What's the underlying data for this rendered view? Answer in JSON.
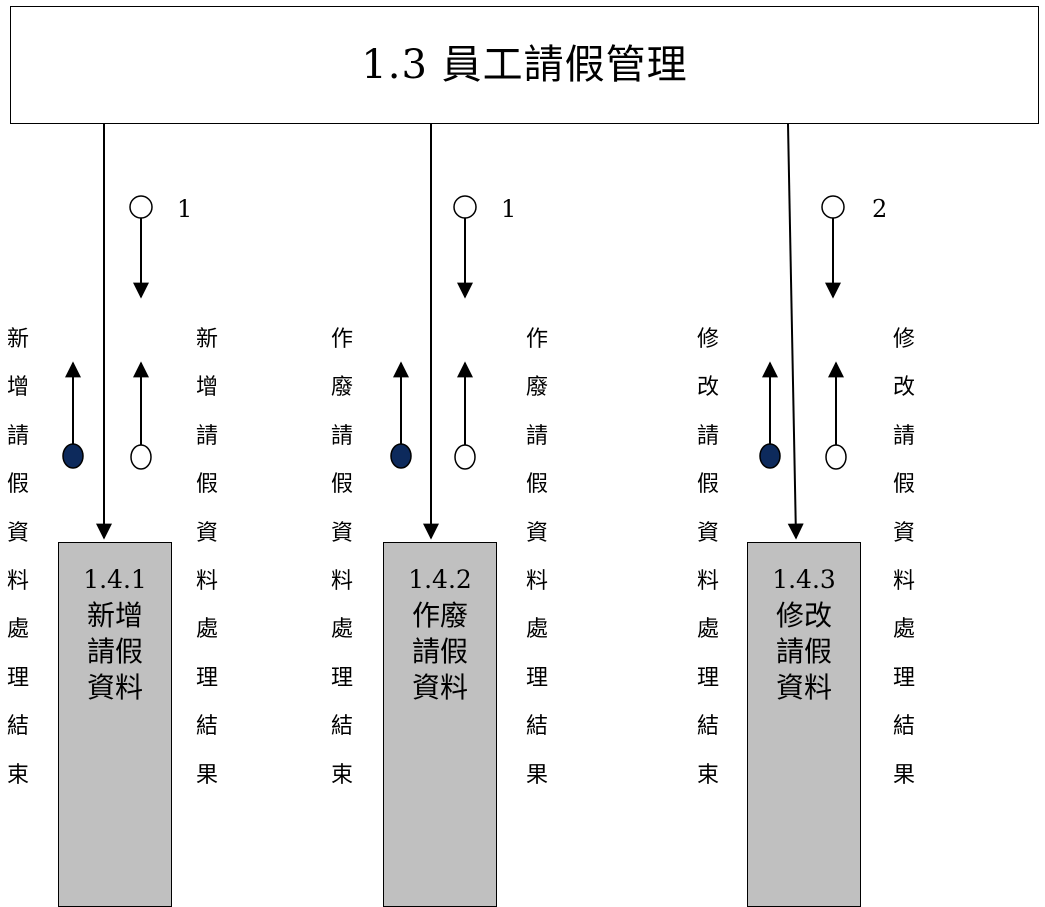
{
  "title": "1.3 員工請假管理",
  "modules": [
    {
      "number": "1.4.1",
      "name_lines": [
        "新增",
        "請假",
        "資料"
      ],
      "flag_number": "1",
      "left_label_chars": [
        "新",
        "增",
        "請",
        "假",
        "資",
        "料",
        "處",
        "理",
        "結",
        "束"
      ],
      "right_label_chars": [
        "新",
        "增",
        "請",
        "假",
        "資",
        "料",
        "處",
        "理",
        "結",
        "果"
      ]
    },
    {
      "number": "1.4.2",
      "name_lines": [
        "作廢",
        "請假",
        "資料"
      ],
      "flag_number": "1",
      "left_label_chars": [
        "作",
        "廢",
        "請",
        "假",
        "資",
        "料",
        "處",
        "理",
        "結",
        "束"
      ],
      "right_label_chars": [
        "作",
        "廢",
        "請",
        "假",
        "資",
        "料",
        "處",
        "理",
        "結",
        "果"
      ]
    },
    {
      "number": "1.4.3",
      "name_lines": [
        "修改",
        "請假",
        "資料"
      ],
      "flag_number": "2",
      "left_label_chars": [
        "修",
        "改",
        "請",
        "假",
        "資",
        "料",
        "處",
        "理",
        "結",
        "束"
      ],
      "right_label_chars": [
        "修",
        "改",
        "請",
        "假",
        "資",
        "料",
        "處",
        "理",
        "結",
        "果"
      ]
    }
  ],
  "colors": {
    "module_fill": "#c0c0c0",
    "control_flag_fill": "#0d2a5c",
    "line": "#000000"
  }
}
